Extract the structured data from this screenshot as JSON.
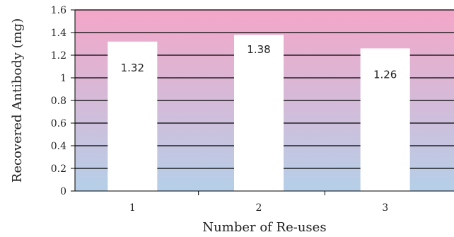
{
  "chart_data": {
    "type": "bar",
    "title": "",
    "xlabel": "Number of Re-uses",
    "ylabel": "Recovered Antibody (mg)",
    "categories": [
      "1",
      "2",
      "3"
    ],
    "values": [
      1.32,
      1.38,
      1.26
    ],
    "data_labels": [
      "1.32",
      "1.38",
      "1.26"
    ],
    "ylim": [
      0,
      1.6
    ],
    "yticks": [
      "0",
      "0.2",
      "0.4",
      "0.6",
      "0.8",
      "1",
      "1.2",
      "1.4",
      "1.6"
    ],
    "grid": true,
    "bar_color": "#ffffff",
    "background_gradient": [
      "#f4a6c8",
      "#b5cfe8"
    ],
    "gridline_color": "#000000"
  }
}
